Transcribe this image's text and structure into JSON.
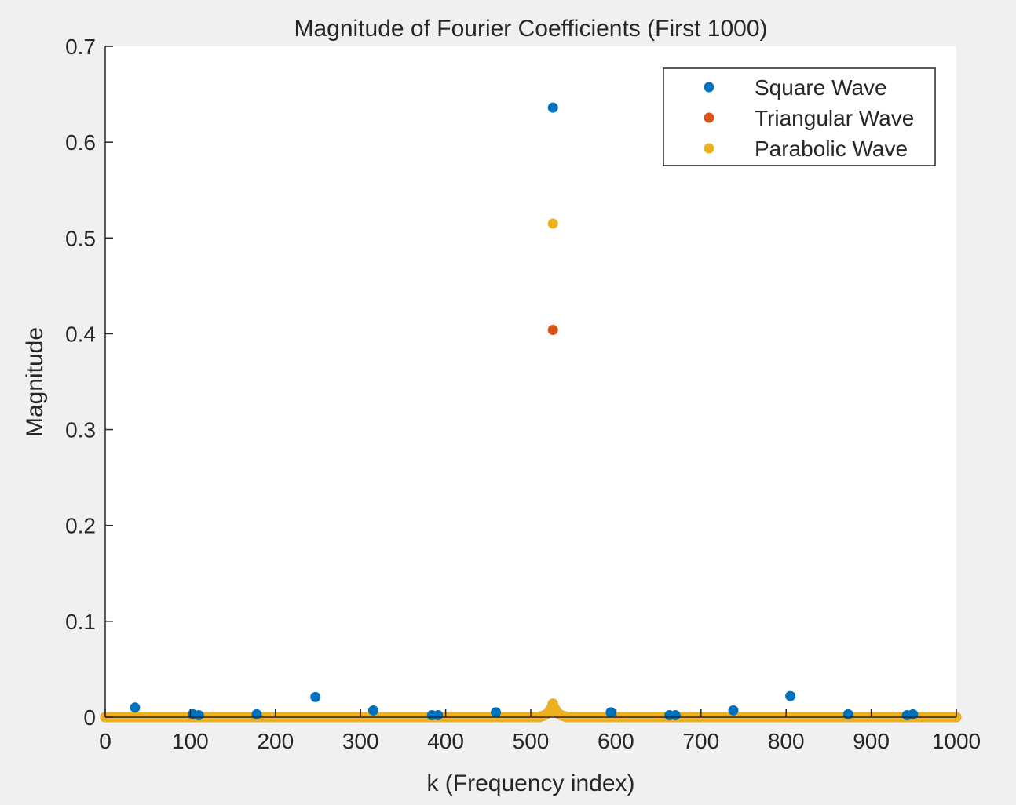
{
  "chart_data": {
    "type": "scatter",
    "title": "Magnitude of Fourier Coefficients (First 1000)",
    "xlabel": "k (Frequency index)",
    "ylabel": "Magnitude",
    "xlim": [
      0,
      1000
    ],
    "ylim": [
      0,
      0.7
    ],
    "xticks": [
      0,
      100,
      200,
      300,
      400,
      500,
      600,
      700,
      800,
      900,
      1000
    ],
    "yticks": [
      0,
      0.1,
      0.2,
      0.3,
      0.4,
      0.5,
      0.6,
      0.7
    ],
    "grid": false,
    "legend_position": "top-right",
    "series": [
      {
        "name": "Square Wave",
        "color": "#0072bd",
        "x": [
          35,
          103,
          110,
          178,
          247,
          315,
          384,
          391,
          459,
          526,
          594,
          663,
          670,
          738,
          805,
          873,
          942,
          949
        ],
        "y": [
          0.01,
          0.003,
          0.002,
          0.003,
          0.021,
          0.007,
          0.002,
          0.002,
          0.005,
          0.636,
          0.005,
          0.002,
          0.002,
          0.007,
          0.022,
          0.003,
          0.002,
          0.003
        ]
      },
      {
        "name": "Triangular Wave",
        "color": "#d95319",
        "x": [
          526
        ],
        "y": [
          0.404
        ]
      },
      {
        "name": "Parabolic Wave",
        "color": "#edb120",
        "x": [
          526
        ],
        "y": [
          0.515
        ]
      }
    ]
  }
}
